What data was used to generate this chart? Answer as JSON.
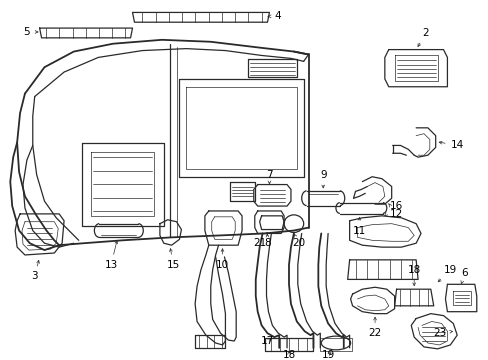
{
  "title": "",
  "background_color": "#ffffff",
  "line_color": "#2a2a2a",
  "text_color": "#000000",
  "fig_width": 4.89,
  "fig_height": 3.6,
  "dpi": 100,
  "lw_thin": 0.5,
  "lw_med": 0.9,
  "lw_thick": 1.3,
  "font_size": 7.5,
  "arrow_lw": 0.5,
  "arrow_ms": 5
}
